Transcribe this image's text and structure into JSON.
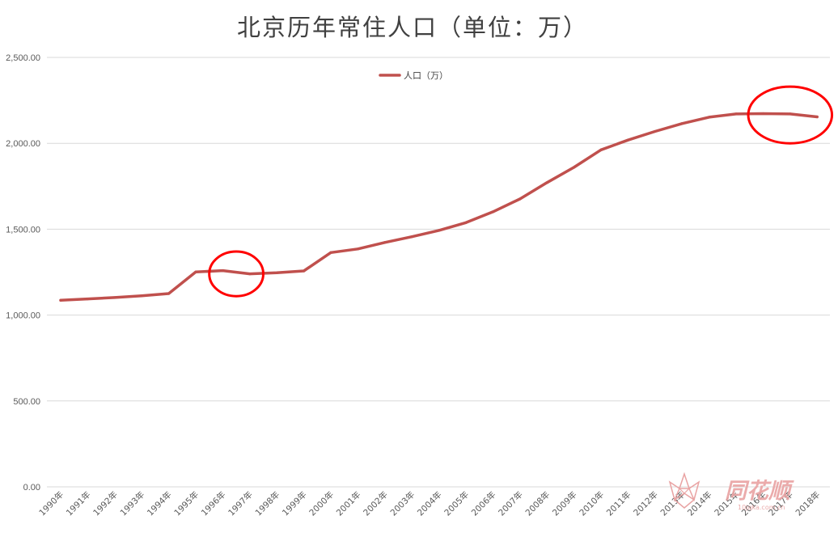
{
  "chart_data": {
    "type": "line",
    "title": "北京历年常住人口（单位：万）",
    "xlabel": "",
    "ylabel": "",
    "categories": [
      "1990年",
      "1991年",
      "1992年",
      "1993年",
      "1994年",
      "1995年",
      "1996年",
      "1997年",
      "1998年",
      "1999年",
      "2000年",
      "2001年",
      "2002年",
      "2003年",
      "2004年",
      "2005年",
      "2006年",
      "2007年",
      "2008年",
      "2009年",
      "2010年",
      "2011年",
      "2012年",
      "2013年",
      "2014年",
      "2015年",
      "2016年",
      "2017年",
      "2018年"
    ],
    "series": [
      {
        "name": "人口（万）",
        "color": "#c0504d",
        "values": [
          1086,
          1094,
          1102,
          1112,
          1125,
          1251,
          1259,
          1240,
          1246,
          1257,
          1364,
          1385,
          1423,
          1456,
          1493,
          1538,
          1601,
          1676,
          1771,
          1860,
          1962,
          2019,
          2069,
          2115,
          2152,
          2171,
          2173,
          2171,
          2154
        ]
      }
    ],
    "ylim": [
      0,
      2500
    ],
    "y_ticks": [
      "0.00",
      "500.00",
      "1,000.00",
      "1,500.00",
      "2,000.00",
      "2,500.00"
    ],
    "y_tick_values": [
      0,
      500,
      1000,
      1500,
      2000,
      2500
    ],
    "grid": true,
    "legend_position": "top"
  },
  "annotations": {
    "circle_color": "#ff0000",
    "circles": [
      {
        "x_center": 6.5,
        "y_center": 1240,
        "rx": 1.0,
        "ry": 130
      },
      {
        "x_center": 27.0,
        "y_center": 2165,
        "rx": 1.55,
        "ry": 165
      }
    ]
  },
  "watermark": {
    "text": "同花顺",
    "subtext": "10jqka.com.cn",
    "color": "#e9a3a3",
    "icon": "flower-logo-icon"
  }
}
